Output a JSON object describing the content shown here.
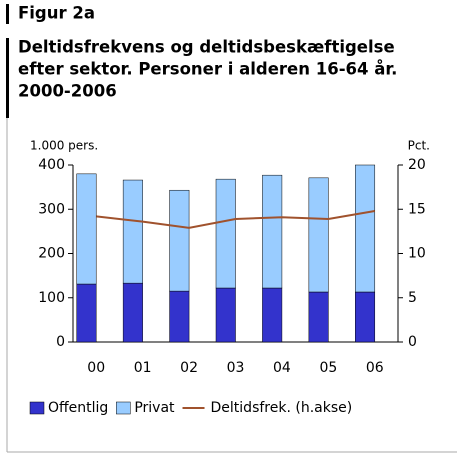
{
  "chart_data": {
    "type": "bar",
    "label": "Figur 2a",
    "title": [
      "Deltidsfrekvens og deltidsbeskæftigelse",
      "efter sektor. Personer i alderen 16-64 år.",
      "2000-2006"
    ],
    "y_label": "1.000 pers.",
    "y2_label": "Pct.",
    "categories": [
      "00",
      "01",
      "02",
      "03",
      "04",
      "05",
      "06"
    ],
    "series": [
      {
        "name": "Offentlig",
        "color": "#3333cc",
        "values": [
          131,
          133,
          115,
          122,
          122,
          113,
          113
        ]
      },
      {
        "name": "Privat",
        "color": "#99ccff",
        "values": [
          249,
          233,
          228,
          246,
          255,
          258,
          287
        ]
      },
      {
        "name": "Deltidsfrek. (h.akse)",
        "color": "#a0522d",
        "type": "line",
        "axis": "y2",
        "values": [
          14.2,
          13.6,
          12.9,
          13.9,
          14.1,
          13.9,
          14.8
        ]
      }
    ],
    "stacked": true,
    "ylim": [
      0,
      400
    ],
    "yticks": [
      0,
      100,
      200,
      300,
      400
    ],
    "y2lim": [
      0,
      20
    ],
    "y2ticks": [
      0,
      5,
      10,
      15,
      20
    ]
  }
}
